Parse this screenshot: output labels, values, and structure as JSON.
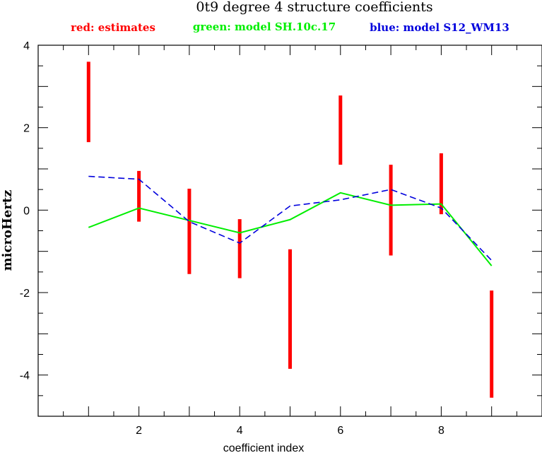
{
  "chart_data": {
    "type": "line",
    "title": "0t9 degree 4 structure coefficients",
    "xlabel": "coefficient index",
    "ylabel": "microHertz",
    "xlim": [
      0,
      10
    ],
    "ylim": [
      -5,
      4
    ],
    "x_ticks": [
      2,
      4,
      6,
      8
    ],
    "y_ticks": [
      -4,
      -2,
      0,
      2,
      4
    ],
    "grid": false,
    "legend": {
      "placement": "top",
      "entries": [
        {
          "label": "red: estimates",
          "color": "#ff0000"
        },
        {
          "label": "green: model SH.10c.17",
          "color": "#00ee00"
        },
        {
          "label": "blue: model S12_WM13",
          "color": "#0000dd"
        }
      ]
    },
    "series": [
      {
        "style": "error-bars",
        "color": "#ff0000",
        "x": [
          1,
          2,
          3,
          4,
          5,
          6,
          7,
          8,
          9
        ],
        "low": [
          1.65,
          -0.28,
          -1.55,
          -1.65,
          -3.85,
          1.1,
          -1.1,
          -0.1,
          -4.55
        ],
        "high": [
          3.6,
          0.95,
          0.52,
          -0.22,
          -0.95,
          2.78,
          1.1,
          1.38,
          -1.95
        ]
      },
      {
        "style": "solid-line",
        "color": "#00ee00",
        "x": [
          1,
          2,
          3,
          4,
          5,
          6,
          7,
          8,
          9
        ],
        "values": [
          -0.42,
          0.05,
          -0.25,
          -0.55,
          -0.23,
          0.42,
          0.12,
          0.15,
          -1.35
        ]
      },
      {
        "style": "dashed-line",
        "color": "#0000dd",
        "x": [
          1,
          2,
          3,
          4,
          5,
          6,
          7,
          8,
          9
        ],
        "values": [
          0.82,
          0.75,
          -0.28,
          -0.8,
          0.1,
          0.25,
          0.5,
          0.05,
          -1.22
        ]
      }
    ]
  }
}
